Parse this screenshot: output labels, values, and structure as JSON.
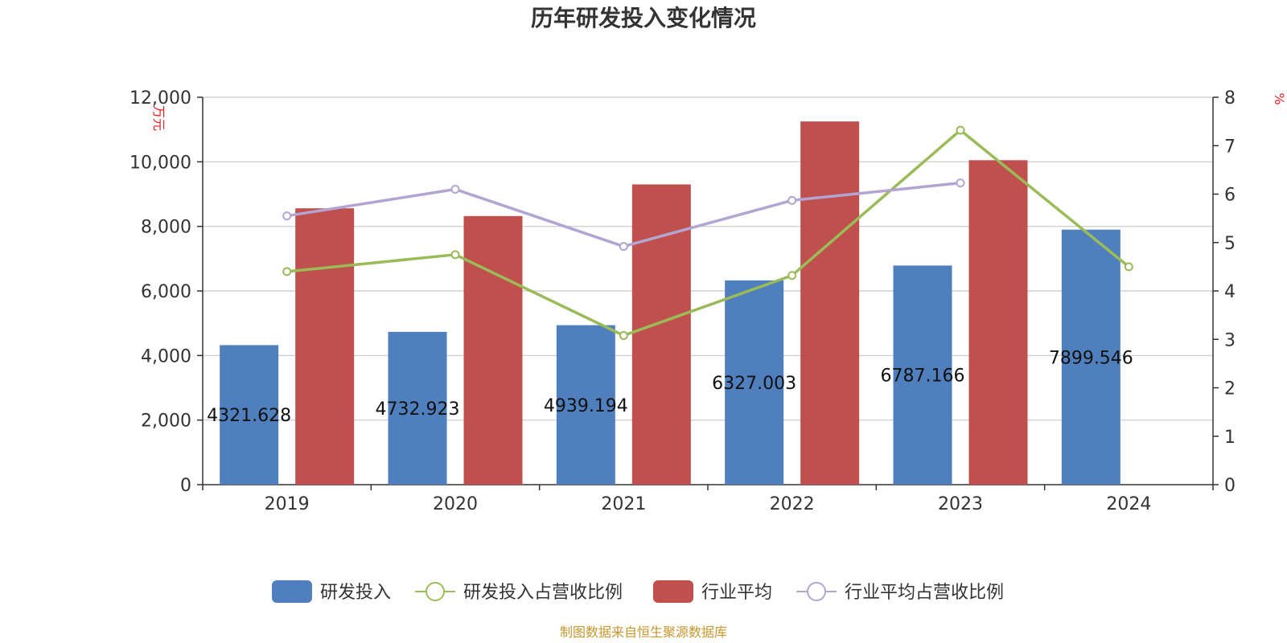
{
  "chart_data": {
    "type": "bar",
    "title": "历年研发投入变化情况",
    "categories": [
      "2019",
      "2020",
      "2021",
      "2022",
      "2023",
      "2024"
    ],
    "y_left": {
      "unit": "万元",
      "ylim": [
        0,
        12000
      ],
      "ticks": [
        0,
        2000,
        4000,
        6000,
        8000,
        10000,
        12000
      ],
      "tick_labels": [
        "0",
        "2,000",
        "4,000",
        "6,000",
        "8,000",
        "10,000",
        "12,000"
      ]
    },
    "y_right": {
      "unit": "%",
      "ylim": [
        0,
        8
      ],
      "ticks": [
        0,
        1,
        2,
        3,
        4,
        5,
        6,
        7,
        8
      ],
      "tick_labels": [
        "0",
        "1",
        "2",
        "3",
        "4",
        "5",
        "6",
        "7",
        "8"
      ]
    },
    "series": [
      {
        "name": "研发投入",
        "type": "bar",
        "axis": "left",
        "color": "#4f7fbd",
        "values": [
          4321.628,
          4732.923,
          4939.194,
          6327.003,
          6787.166,
          7899.546
        ],
        "labels": [
          "4321.628",
          "4732.923",
          "4939.194",
          "6327.003",
          "6787.166",
          "7899.546"
        ]
      },
      {
        "name": "研发投入占营收比例",
        "type": "line",
        "axis": "right",
        "color": "#9bbb59",
        "values": [
          4.4,
          4.75,
          3.08,
          4.32,
          7.32,
          4.5
        ]
      },
      {
        "name": "行业平均",
        "type": "bar",
        "axis": "left",
        "color": "#c0504d",
        "values": [
          8560,
          8320,
          9300,
          11250,
          10050,
          null
        ]
      },
      {
        "name": "行业平均占营收比例",
        "type": "line",
        "axis": "right",
        "color": "#b3a5d2",
        "values": [
          5.55,
          6.1,
          4.92,
          5.87,
          6.23,
          null
        ]
      }
    ],
    "grid": true,
    "legend_position": "bottom",
    "source_note": "制图数据来自恒生聚源数据库"
  }
}
